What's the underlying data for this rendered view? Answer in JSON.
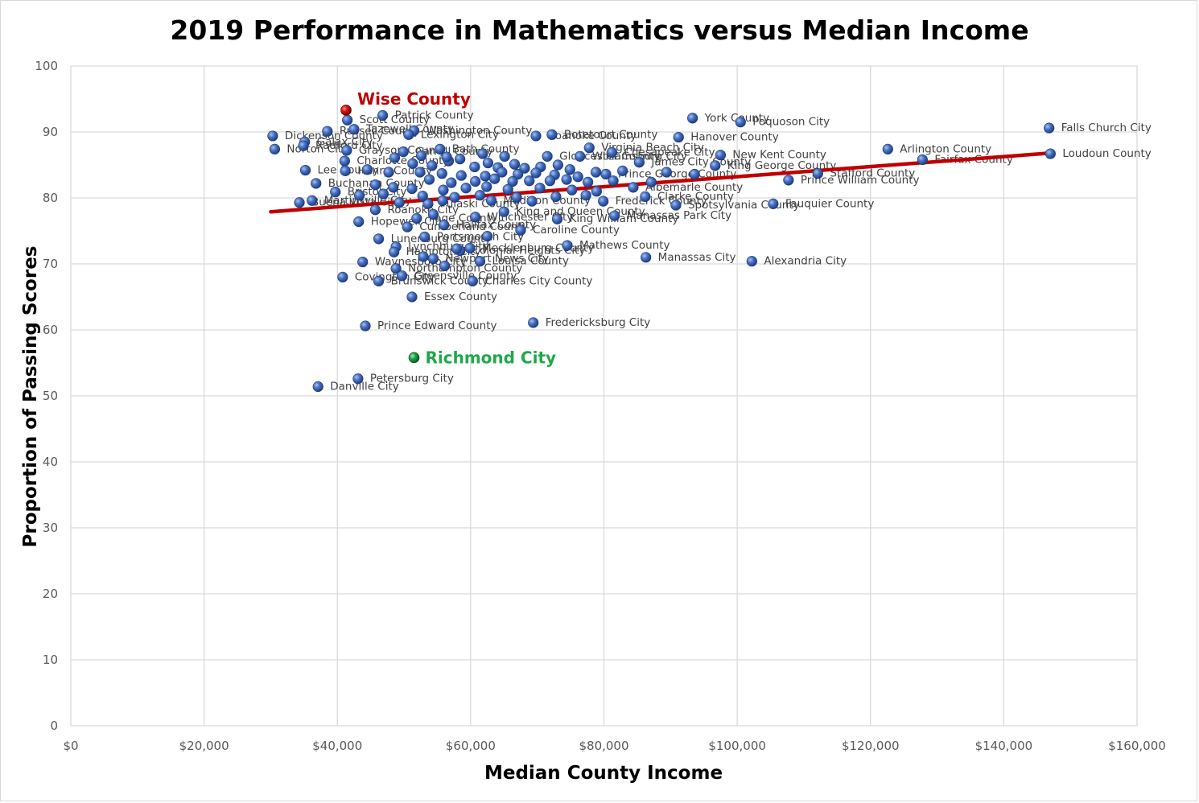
{
  "chart_data": {
    "type": "scatter",
    "title": "2019 Performance in Mathematics versus Median Income",
    "xlabel": "Median County Income",
    "ylabel": "Proportion of Passing Scores",
    "xlim": [
      0,
      160000
    ],
    "ylim": [
      0,
      100
    ],
    "x_ticks": [
      0,
      20000,
      40000,
      60000,
      80000,
      100000,
      120000,
      140000,
      160000
    ],
    "x_tick_labels": [
      "$0",
      "$20,000",
      "$40,000",
      "$60,000",
      "$80,000",
      "$100,000",
      "$120,000",
      "$140,000",
      "$160,000"
    ],
    "y_ticks": [
      0,
      10,
      20,
      30,
      40,
      50,
      60,
      70,
      80,
      90,
      100
    ],
    "y_tick_labels": [
      "0",
      "10",
      "20",
      "30",
      "40",
      "50",
      "60",
      "70",
      "80",
      "90",
      "100"
    ],
    "grid": true,
    "trendline": {
      "x": [
        30000,
        147000
      ],
      "y": [
        77.9,
        86.8
      ],
      "color": "#c00000"
    },
    "colors": {
      "point": "#3a63b5",
      "highlight_wise": "#c00000",
      "highlight_richmond": "#1a9a3c",
      "label_wise": "#c00000",
      "label_richmond": "#1fa84a"
    },
    "highlights": [
      {
        "name": "Wise County",
        "x": 41300,
        "y": 93.3,
        "color": "#c00000"
      },
      {
        "name": "Richmond City",
        "x": 51500,
        "y": 55.8,
        "color": "#1a9a3c"
      }
    ],
    "points": [
      {
        "label": "Patrick County",
        "x": 46800,
        "y": 92.5
      },
      {
        "label": "Scott County",
        "x": 41500,
        "y": 91.8
      },
      {
        "label": "Tazewell County",
        "x": 42500,
        "y": 90.4
      },
      {
        "label": "Washington County",
        "x": 51500,
        "y": 90.2
      },
      {
        "label": "Lexington City",
        "x": 50700,
        "y": 89.6
      },
      {
        "label": "Russell County",
        "x": 38500,
        "y": 90.1
      },
      {
        "label": "Dickenson County",
        "x": 30300,
        "y": 89.4
      },
      {
        "label": "Galax City",
        "x": 35100,
        "y": 88.5
      },
      {
        "label": "Norton City",
        "x": 30600,
        "y": 87.4
      },
      {
        "label": "Radford City",
        "x": 34900,
        "y": 87.9
      },
      {
        "label": "Grayson County",
        "x": 41400,
        "y": 87.2
      },
      {
        "label": "Carroll County",
        "x": 49900,
        "y": 87.0
      },
      {
        "label": "Bath County",
        "x": 55400,
        "y": 87.4
      },
      {
        "label": "Charlotte County",
        "x": 41100,
        "y": 85.6
      },
      {
        "label": "Lee County",
        "x": 35200,
        "y": 84.2
      },
      {
        "label": "Henry County",
        "x": 41200,
        "y": 84.1
      },
      {
        "label": "Buchanan County",
        "x": 36800,
        "y": 82.2
      },
      {
        "label": "Bristol City",
        "x": 39700,
        "y": 80.9
      },
      {
        "label": "Martinsville City",
        "x": 36200,
        "y": 79.6
      },
      {
        "label": "Buena Vista City",
        "x": 34300,
        "y": 79.3
      },
      {
        "label": "Roanoke City",
        "x": 45700,
        "y": 78.2
      },
      {
        "label": "Pulaski County",
        "x": 53600,
        "y": 79.1
      },
      {
        "label": "Hopewell City",
        "x": 43200,
        "y": 76.4
      },
      {
        "label": "Cumberland County",
        "x": 50500,
        "y": 75.6
      },
      {
        "label": "Page County",
        "x": 51900,
        "y": 76.9
      },
      {
        "label": "Halifax County",
        "x": 56000,
        "y": 75.9
      },
      {
        "label": "Winchester City",
        "x": 60700,
        "y": 77.1
      },
      {
        "label": "Lunenburg County",
        "x": 46200,
        "y": 73.8
      },
      {
        "label": "Portsmouth City",
        "x": 53100,
        "y": 74.1
      },
      {
        "label": "Lynchburg City",
        "x": 48800,
        "y": 72.6
      },
      {
        "label": "Hampton City",
        "x": 48500,
        "y": 71.8
      },
      {
        "label": "Mecklenburg County",
        "x": 59900,
        "y": 72.4
      },
      {
        "label": "Colonial Heights City",
        "x": 58400,
        "y": 72.0
      },
      {
        "label": "Newport News City",
        "x": 54400,
        "y": 70.8
      },
      {
        "label": "Waynesboro City",
        "x": 43800,
        "y": 70.3
      },
      {
        "label": "Louisa County",
        "x": 61400,
        "y": 70.4
      },
      {
        "label": "Northampton County",
        "x": 48800,
        "y": 69.3
      },
      {
        "label": "Covington City",
        "x": 40800,
        "y": 68.0
      },
      {
        "label": "Greensville County",
        "x": 49700,
        "y": 68.2
      },
      {
        "label": "Brunswick County",
        "x": 46200,
        "y": 67.4
      },
      {
        "label": "Charles City County",
        "x": 60300,
        "y": 67.4
      },
      {
        "label": "Essex County",
        "x": 51200,
        "y": 65.0
      },
      {
        "label": "Prince Edward County",
        "x": 44200,
        "y": 60.6
      },
      {
        "label": "Fredericksburg City",
        "x": 69400,
        "y": 61.1
      },
      {
        "label": "Petersburg City",
        "x": 43100,
        "y": 52.6
      },
      {
        "label": "Danville City",
        "x": 37100,
        "y": 51.4
      },
      {
        "label": "Caroline County",
        "x": 67500,
        "y": 75.1
      },
      {
        "label": "Hanover County",
        "x": 91200,
        "y": 89.2
      },
      {
        "label": "York County",
        "x": 93300,
        "y": 92.1
      },
      {
        "label": "Poquoson City",
        "x": 100500,
        "y": 91.5
      },
      {
        "label": "Botetourt County",
        "x": 72200,
        "y": 89.6
      },
      {
        "label": "Roanoke County",
        "x": 69800,
        "y": 89.4
      },
      {
        "label": "Virginia Beach City",
        "x": 77800,
        "y": 87.6
      },
      {
        "label": "Chesapeake City",
        "x": 81200,
        "y": 86.9
      },
      {
        "label": "New Kent County",
        "x": 97500,
        "y": 86.5
      },
      {
        "label": "King George County",
        "x": 96700,
        "y": 84.9
      },
      {
        "label": "James City County",
        "x": 85300,
        "y": 85.4
      },
      {
        "label": "Williamsburg City",
        "x": 76400,
        "y": 86.3
      },
      {
        "label": "Gloucester County",
        "x": 71500,
        "y": 86.3
      },
      {
        "label": "Stafford County",
        "x": 112100,
        "y": 83.7
      },
      {
        "label": "Prince William County",
        "x": 107700,
        "y": 82.7
      },
      {
        "label": "Prince George County",
        "x": 80300,
        "y": 83.6
      },
      {
        "label": "Albemarle County",
        "x": 84400,
        "y": 81.6
      },
      {
        "label": "Frederick County",
        "x": 79900,
        "y": 79.5
      },
      {
        "label": "Clarke County",
        "x": 86200,
        "y": 80.2
      },
      {
        "label": "Spotsylvania County",
        "x": 90800,
        "y": 78.9
      },
      {
        "label": "Fauquier County",
        "x": 105400,
        "y": 79.1
      },
      {
        "label": "Manassas Park City",
        "x": 81600,
        "y": 77.3
      },
      {
        "label": "King William County",
        "x": 73000,
        "y": 76.8
      },
      {
        "label": "King and Queen County",
        "x": 65000,
        "y": 77.9
      },
      {
        "label": "Madison County",
        "x": 63100,
        "y": 79.6
      },
      {
        "label": "Mathews County",
        "x": 74500,
        "y": 72.8
      },
      {
        "label": "Manassas City",
        "x": 86300,
        "y": 71.0
      },
      {
        "label": "Alexandria City",
        "x": 102200,
        "y": 70.4
      },
      {
        "label": "Arlington County",
        "x": 122600,
        "y": 87.4
      },
      {
        "label": "Fairfax County",
        "x": 127800,
        "y": 85.8
      },
      {
        "label": "Falls Church City",
        "x": 146800,
        "y": 90.6
      },
      {
        "label": "Loudoun County",
        "x": 147000,
        "y": 86.7
      },
      {
        "label": "",
        "x": 51300,
        "y": 85.2
      },
      {
        "label": "",
        "x": 54200,
        "y": 84.9
      },
      {
        "label": "",
        "x": 56700,
        "y": 85.6
      },
      {
        "label": "",
        "x": 58400,
        "y": 85.9
      },
      {
        "label": "",
        "x": 60600,
        "y": 84.7
      },
      {
        "label": "",
        "x": 62600,
        "y": 85.3
      },
      {
        "label": "",
        "x": 64100,
        "y": 84.6
      },
      {
        "label": "",
        "x": 66600,
        "y": 85.1
      },
      {
        "label": "",
        "x": 68100,
        "y": 84.5
      },
      {
        "label": "",
        "x": 70500,
        "y": 84.7
      },
      {
        "label": "",
        "x": 73100,
        "y": 85.0
      },
      {
        "label": "",
        "x": 74900,
        "y": 84.3
      },
      {
        "label": "",
        "x": 44500,
        "y": 84.3
      },
      {
        "label": "",
        "x": 47700,
        "y": 83.9
      },
      {
        "label": "",
        "x": 52400,
        "y": 83.9
      },
      {
        "label": "",
        "x": 55700,
        "y": 83.7
      },
      {
        "label": "",
        "x": 58600,
        "y": 83.4
      },
      {
        "label": "",
        "x": 62200,
        "y": 83.3
      },
      {
        "label": "",
        "x": 64700,
        "y": 83.9
      },
      {
        "label": "",
        "x": 67100,
        "y": 83.6
      },
      {
        "label": "",
        "x": 69800,
        "y": 83.8
      },
      {
        "label": "",
        "x": 72600,
        "y": 83.5
      },
      {
        "label": "",
        "x": 76100,
        "y": 83.2
      },
      {
        "label": "",
        "x": 78800,
        "y": 83.9
      },
      {
        "label": "",
        "x": 82800,
        "y": 84.1
      },
      {
        "label": "",
        "x": 89400,
        "y": 83.9
      },
      {
        "label": "",
        "x": 93600,
        "y": 83.6
      },
      {
        "label": "",
        "x": 53800,
        "y": 82.8
      },
      {
        "label": "",
        "x": 57100,
        "y": 82.3
      },
      {
        "label": "",
        "x": 60700,
        "y": 82.5
      },
      {
        "label": "",
        "x": 63600,
        "y": 82.9
      },
      {
        "label": "",
        "x": 66300,
        "y": 82.5
      },
      {
        "label": "",
        "x": 68800,
        "y": 82.6
      },
      {
        "label": "",
        "x": 71900,
        "y": 82.6
      },
      {
        "label": "",
        "x": 74400,
        "y": 82.8
      },
      {
        "label": "",
        "x": 77600,
        "y": 82.4
      },
      {
        "label": "",
        "x": 81400,
        "y": 82.6
      },
      {
        "label": "",
        "x": 87100,
        "y": 82.4
      },
      {
        "label": "",
        "x": 48400,
        "y": 81.6
      },
      {
        "label": "",
        "x": 51200,
        "y": 81.4
      },
      {
        "label": "",
        "x": 55900,
        "y": 81.2
      },
      {
        "label": "",
        "x": 59300,
        "y": 81.5
      },
      {
        "label": "",
        "x": 62400,
        "y": 81.7
      },
      {
        "label": "",
        "x": 65600,
        "y": 81.3
      },
      {
        "label": "",
        "x": 70400,
        "y": 81.5
      },
      {
        "label": "",
        "x": 75200,
        "y": 81.2
      },
      {
        "label": "",
        "x": 78900,
        "y": 81.0
      },
      {
        "label": "",
        "x": 43300,
        "y": 80.4
      },
      {
        "label": "",
        "x": 46900,
        "y": 80.6
      },
      {
        "label": "",
        "x": 52800,
        "y": 80.3
      },
      {
        "label": "",
        "x": 57600,
        "y": 80.1
      },
      {
        "label": "",
        "x": 61400,
        "y": 80.4
      },
      {
        "label": "",
        "x": 66900,
        "y": 80.1
      },
      {
        "label": "",
        "x": 72800,
        "y": 80.2
      },
      {
        "label": "",
        "x": 77300,
        "y": 80.4
      },
      {
        "label": "",
        "x": 49300,
        "y": 79.3
      },
      {
        "label": "",
        "x": 55800,
        "y": 79.6
      },
      {
        "label": "",
        "x": 69200,
        "y": 79.5
      },
      {
        "label": "",
        "x": 52600,
        "y": 86.4
      },
      {
        "label": "",
        "x": 56400,
        "y": 86.2
      },
      {
        "label": "",
        "x": 61800,
        "y": 86.7
      },
      {
        "label": "",
        "x": 65100,
        "y": 86.3
      },
      {
        "label": "",
        "x": 48600,
        "y": 86.1
      },
      {
        "label": "",
        "x": 45700,
        "y": 82.0
      },
      {
        "label": "",
        "x": 54400,
        "y": 77.5
      },
      {
        "label": "",
        "x": 57900,
        "y": 72.3
      },
      {
        "label": "",
        "x": 62500,
        "y": 74.2
      },
      {
        "label": "",
        "x": 56100,
        "y": 69.7
      },
      {
        "label": "",
        "x": 52900,
        "y": 71.1
      }
    ]
  }
}
